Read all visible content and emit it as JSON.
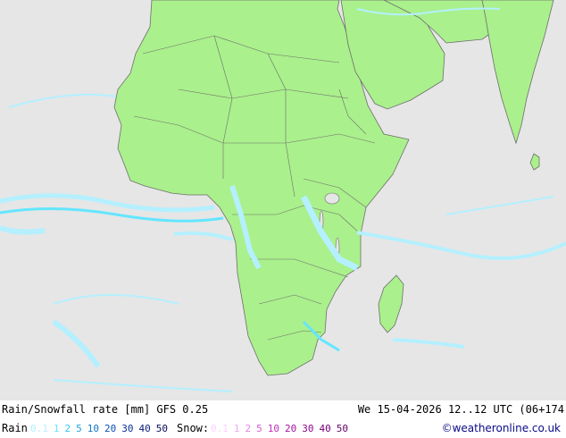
{
  "header": {
    "title": "Rain/Snowfall rate [mm] GFS 0.25",
    "datetime": "We 15-04-2026 12..12 UTC (06+174"
  },
  "legend": {
    "rain_label": "Rain",
    "rain_scale": [
      {
        "label": "0.1",
        "color": "#b4f0ff"
      },
      {
        "label": "1",
        "color": "#64e6ff"
      },
      {
        "label": "2",
        "color": "#32c8f0"
      },
      {
        "label": "5",
        "color": "#1ea0dc"
      },
      {
        "label": "10",
        "color": "#1478c8"
      },
      {
        "label": "20",
        "color": "#0a50b4"
      },
      {
        "label": "30",
        "color": "#0a3296"
      },
      {
        "label": "40",
        "color": "#0a1e78"
      },
      {
        "label": "50",
        "color": "#0a0a5a"
      }
    ],
    "snow_label": "Snow:",
    "snow_scale": [
      {
        "label": "0.1",
        "color": "#ffd2ff"
      },
      {
        "label": "1",
        "color": "#f0aaf0"
      },
      {
        "label": "2",
        "color": "#e682e6"
      },
      {
        "label": "5",
        "color": "#d25ad2"
      },
      {
        "label": "10",
        "color": "#be32be"
      },
      {
        "label": "20",
        "color": "#a014a0"
      },
      {
        "label": "30",
        "color": "#8c0a8c"
      },
      {
        "label": "40",
        "color": "#780078"
      },
      {
        "label": "50",
        "color": "#640064"
      }
    ],
    "credit": "©weatheronline.co.uk"
  },
  "colors": {
    "ocean": "#e6e6e6",
    "land": "#aaf08c",
    "border": "#6e6e6e",
    "rain_light": "#b4f0ff",
    "rain_mid": "#64e6ff"
  }
}
